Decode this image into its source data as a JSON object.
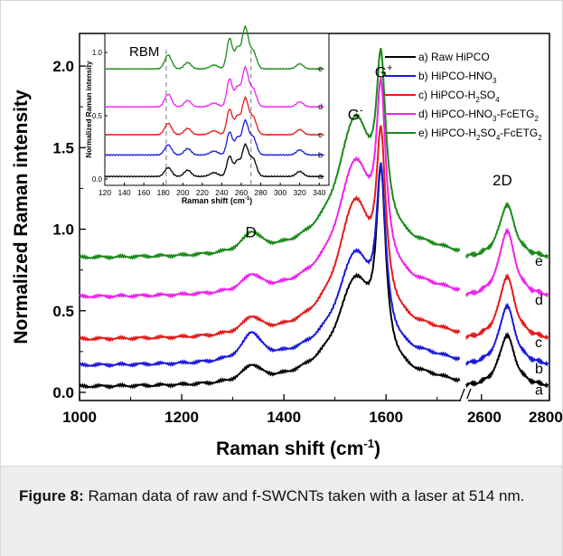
{
  "chart_data": [
    {
      "type": "line",
      "xlabel": "Raman shift (cm-1)",
      "ylabel": "Normalized Raman intensity",
      "xlim": [
        1000,
        1750
      ],
      "x_break_to": [
        2550,
        2800
      ],
      "ylim": [
        -0.05,
        2.2
      ],
      "x_ticks": [
        "1000",
        "1200",
        "1400",
        "1600",
        "2600",
        "2800"
      ],
      "y_ticks": [
        "0.0",
        "0.5",
        "1.0",
        "1.5",
        "2.0"
      ],
      "peak_labels": [
        "D",
        "G-",
        "G+",
        "2D"
      ],
      "legend_placement": "top-right",
      "series": [
        {
          "name": "a) Raw HiPCO",
          "tag": "a",
          "color": "#000000",
          "offset": 0.03,
          "D": 0.1,
          "Gm": 0.52,
          "Gp": 1.09,
          "G2D": 0.32
        },
        {
          "name": "b) HiPCO-HNO3",
          "tag": "b",
          "color": "#1a1adb",
          "offset": 0.16,
          "D": 0.17,
          "Gm": 0.55,
          "Gp": 0.96,
          "G2D": 0.37
        },
        {
          "name": "c) HiPCO-H2SO4",
          "tag": "c",
          "color": "#e41a1a",
          "offset": 0.32,
          "D": 0.1,
          "Gm": 0.71,
          "Gp": 0.97,
          "G2D": 0.39
        },
        {
          "name": "d) HiPCO-HNO3-FcETG2",
          "tag": "d",
          "color": "#ee22ee",
          "offset": 0.58,
          "D": 0.1,
          "Gm": 0.69,
          "Gp": 1.01,
          "G2D": 0.41
        },
        {
          "name": "e) HiPCO-H2SO4-FcETG2",
          "tag": "e",
          "color": "#1a8a1a",
          "offset": 0.82,
          "D": 0.12,
          "Gm": 0.72,
          "Gp": 0.94,
          "G2D": 0.33
        }
      ]
    },
    {
      "type": "line",
      "title": "RBM",
      "xlabel": "Raman shift (cm-1)",
      "ylabel": "Normalized Raman intensity",
      "xlim": [
        120,
        350
      ],
      "ylim": [
        -0.05,
        1.15
      ],
      "x_ticks": [
        "120",
        "140",
        "160",
        "180",
        "200",
        "220",
        "240",
        "260",
        "280",
        "300",
        "320",
        "340"
      ],
      "y_ticks": [
        "0.0",
        "0.5",
        "1.0"
      ],
      "dashed_lines_x": [
        183,
        270
      ],
      "series": [
        {
          "tag": "a",
          "offset": 0.0
        },
        {
          "tag": "b",
          "offset": 0.17
        },
        {
          "tag": "c",
          "offset": 0.33
        },
        {
          "tag": "d",
          "offset": 0.55
        },
        {
          "tag": "e",
          "offset": 0.85
        }
      ]
    }
  ],
  "caption": {
    "label": "Figure 8:",
    "text": " Raman data of raw and f-SWCNTs taken with a laser at 514 nm."
  }
}
